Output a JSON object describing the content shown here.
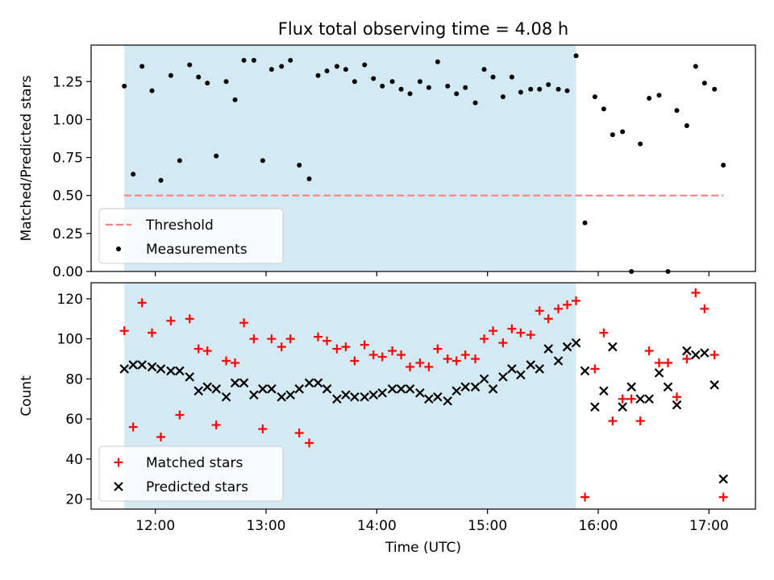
{
  "figure": {
    "title": "Flux total observing time = 4.08 h",
    "shade_color": "#add8e6"
  },
  "chart_data": [
    {
      "type": "scatter",
      "title": "Flux total observing time = 4.08 h",
      "xlabel": "",
      "ylabel": "Matched/Predicted stars",
      "xlim": [
        11.42,
        17.42
      ],
      "ylim": [
        0,
        1.49
      ],
      "x_tick_labels": [
        "12:00",
        "13:00",
        "14:00",
        "15:00",
        "16:00",
        "17:00"
      ],
      "y_ticks": [
        0.0,
        0.25,
        0.5,
        0.75,
        1.0,
        1.25
      ],
      "y_tick_labels": [
        "0.00",
        "0.25",
        "0.50",
        "0.75",
        "1.00",
        "1.25"
      ],
      "shaded_span": [
        11.72,
        15.8
      ],
      "threshold": {
        "value": 0.5,
        "x_range": [
          11.72,
          17.13
        ],
        "label": "Threshold",
        "color": "#ff7f7f"
      },
      "legend": {
        "position": "lower-left",
        "entries": [
          "Threshold",
          "Measurements"
        ]
      },
      "series": [
        {
          "name": "Measurements",
          "marker": "dot",
          "color": "#000000",
          "x": [
            11.72,
            11.8,
            11.88,
            11.97,
            12.05,
            12.14,
            12.22,
            12.31,
            12.39,
            12.47,
            12.55,
            12.64,
            12.72,
            12.8,
            12.89,
            12.97,
            13.05,
            13.14,
            13.22,
            13.3,
            13.39,
            13.47,
            13.55,
            13.64,
            13.72,
            13.8,
            13.89,
            13.97,
            14.05,
            14.14,
            14.22,
            14.3,
            14.39,
            14.47,
            14.55,
            14.64,
            14.72,
            14.8,
            14.89,
            14.97,
            15.05,
            15.14,
            15.22,
            15.3,
            15.39,
            15.47,
            15.55,
            15.64,
            15.72,
            15.8,
            15.88,
            15.97,
            16.05,
            16.13,
            16.22,
            16.3,
            16.38,
            16.46,
            16.55,
            16.63,
            16.71,
            16.8,
            16.88,
            16.96,
            17.05,
            17.13
          ],
          "y": [
            1.22,
            0.64,
            1.35,
            1.19,
            0.6,
            1.29,
            0.73,
            1.36,
            1.28,
            1.24,
            0.76,
            1.25,
            1.13,
            1.39,
            1.39,
            0.73,
            1.33,
            1.35,
            1.39,
            0.7,
            0.61,
            1.29,
            1.32,
            1.35,
            1.33,
            1.25,
            1.36,
            1.27,
            1.22,
            1.25,
            1.2,
            1.17,
            1.25,
            1.21,
            1.38,
            1.22,
            1.17,
            1.21,
            1.11,
            1.33,
            1.28,
            1.15,
            1.28,
            1.18,
            1.2,
            1.2,
            1.23,
            1.2,
            1.19,
            1.42,
            0.32,
            1.15,
            1.07,
            0.9,
            0.92,
            0.0,
            0.84,
            1.14,
            1.16,
            0.0,
            1.06,
            0.96,
            1.35,
            1.24,
            1.2,
            0.7
          ]
        }
      ]
    },
    {
      "type": "scatter",
      "title": "",
      "xlabel": "Time (UTC)",
      "ylabel": "Count",
      "xlim": [
        11.42,
        17.42
      ],
      "ylim": [
        15,
        128
      ],
      "x_tick_labels": [
        "12:00",
        "13:00",
        "14:00",
        "15:00",
        "16:00",
        "17:00"
      ],
      "y_ticks": [
        20,
        40,
        60,
        80,
        100,
        120
      ],
      "y_tick_labels": [
        "20",
        "40",
        "60",
        "80",
        "100",
        "120"
      ],
      "shaded_span": [
        11.72,
        15.8
      ],
      "legend": {
        "position": "lower-left",
        "entries": [
          "Matched stars",
          "Predicted stars"
        ]
      },
      "x": [
        11.72,
        11.8,
        11.88,
        11.97,
        12.05,
        12.14,
        12.22,
        12.31,
        12.39,
        12.47,
        12.55,
        12.64,
        12.72,
        12.8,
        12.89,
        12.97,
        13.05,
        13.14,
        13.22,
        13.3,
        13.39,
        13.47,
        13.55,
        13.64,
        13.72,
        13.8,
        13.89,
        13.97,
        14.05,
        14.14,
        14.22,
        14.3,
        14.39,
        14.47,
        14.55,
        14.64,
        14.72,
        14.8,
        14.89,
        14.97,
        15.05,
        15.14,
        15.22,
        15.3,
        15.39,
        15.47,
        15.55,
        15.64,
        15.72,
        15.8,
        15.88,
        15.97,
        16.05,
        16.13,
        16.22,
        16.3,
        16.38,
        16.46,
        16.55,
        16.63,
        16.71,
        16.8,
        16.88,
        16.96,
        17.05,
        17.13
      ],
      "series": [
        {
          "name": "Matched stars",
          "marker": "plus",
          "color": "#ff0000",
          "values": [
            104,
            56,
            118,
            103,
            51,
            109,
            62,
            110,
            95,
            94,
            57,
            89,
            88,
            108,
            100,
            55,
            100,
            96,
            100,
            53,
            48,
            101,
            99,
            95,
            96,
            89,
            97,
            92,
            91,
            94,
            92,
            86,
            88,
            86,
            95,
            90,
            89,
            92,
            90,
            100,
            104,
            98,
            105,
            103,
            102,
            114,
            110,
            115,
            117,
            119,
            21,
            85,
            103,
            59,
            70,
            70,
            59,
            94,
            88,
            88,
            71,
            90,
            123,
            115,
            92,
            21
          ]
        },
        {
          "name": "Predicted stars",
          "marker": "x",
          "color": "#000000",
          "values": [
            85,
            87,
            87,
            86,
            85,
            84,
            84,
            81,
            74,
            76,
            75,
            71,
            78,
            78,
            72,
            75,
            75,
            71,
            72,
            75,
            78,
            78,
            75,
            70,
            72,
            71,
            71,
            72,
            73,
            75,
            75,
            75,
            73,
            70,
            71,
            69,
            74,
            76,
            76,
            80,
            75,
            81,
            85,
            82,
            87,
            85,
            95,
            89,
            96,
            98,
            84,
            66,
            74,
            96,
            66,
            76,
            70,
            70,
            83,
            76,
            67,
            94,
            92,
            93,
            77,
            30
          ]
        }
      ]
    }
  ]
}
